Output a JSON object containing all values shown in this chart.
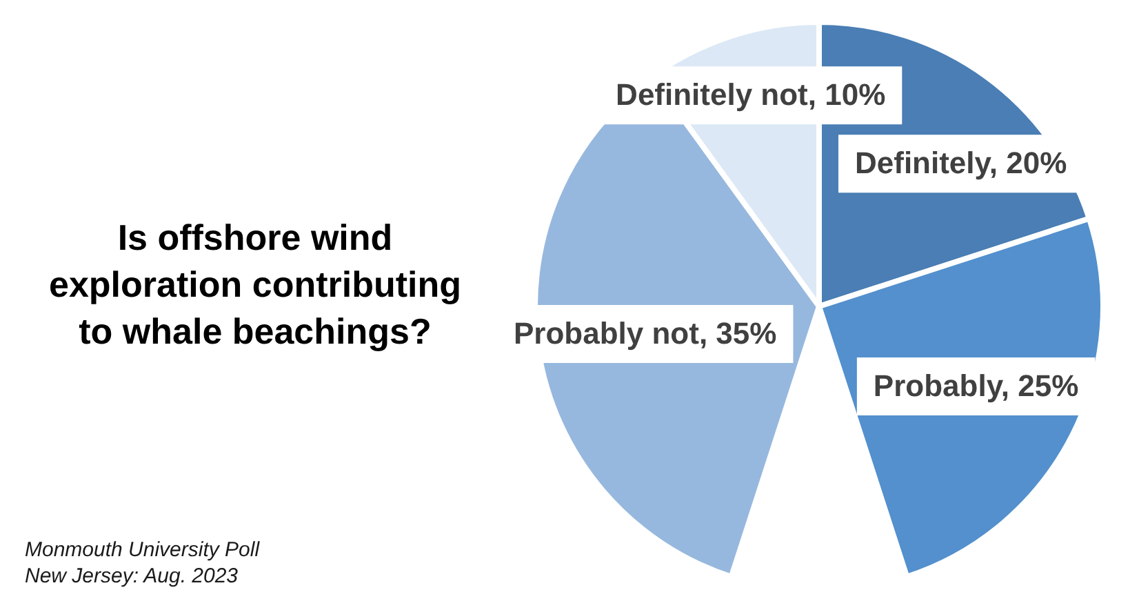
{
  "chart_data": {
    "type": "pie",
    "title": "Is offshore wind exploration contributing to whale beachings?",
    "categories": [
      "Definitely",
      "Probably",
      null,
      "Probably not",
      "Definitely not"
    ],
    "values": [
      20,
      25,
      null,
      35,
      10
    ],
    "colors": [
      "#4a7eb4",
      "#5390cd",
      null,
      "#97b8de",
      "#dce8f5"
    ],
    "value_labels": [
      "20%",
      "25%",
      null,
      "35%",
      "10%"
    ],
    "annotations": [
      "Monmouth University Poll",
      "New Jersey: Aug. 2023"
    ]
  }
}
